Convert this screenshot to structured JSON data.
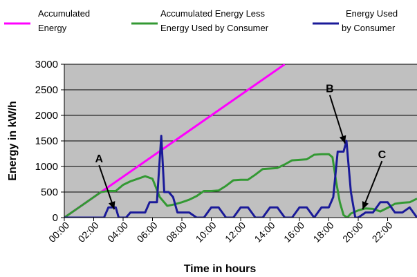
{
  "chart_data": {
    "type": "line",
    "title": "",
    "xlabel": "Time in hours",
    "ylabel": "Energy in kW/h",
    "ylim": [
      0,
      3000
    ],
    "yticks": [
      "0",
      "500",
      "1000",
      "1500",
      "2000",
      "2500",
      "3000"
    ],
    "x_tick_labels": [
      "00:00",
      "02:00",
      "04:00",
      "06:00",
      "08:00",
      "10:00",
      "12:00",
      "14:00",
      "16:00",
      "18:00",
      "20:00",
      "22:00"
    ],
    "x_range_hours": [
      0,
      24
    ],
    "grid": "horizontal",
    "plot_background": "#c0c0c0",
    "legend_position": "top",
    "series": [
      {
        "name": "Accumulated Energy",
        "color": "#ff00ff",
        "x": [
          0,
          15
        ],
        "y": [
          0,
          3000
        ]
      },
      {
        "name": "Accumulated Energy Less Energy Used by Consumer",
        "color": "#339933",
        "x": [
          0,
          1,
          2,
          2.5,
          3,
          3.5,
          4,
          4.5,
          5,
          5.5,
          6,
          6.5,
          7,
          7.5,
          8,
          8.5,
          9,
          9.5,
          10,
          10.5,
          11,
          11.5,
          12,
          12.5,
          13,
          13.5,
          14,
          14.5,
          15,
          15.5,
          16,
          16.5,
          17,
          17.5,
          18,
          18.25,
          18.5,
          18.75,
          19,
          19.25,
          19.5,
          20,
          20.5,
          21,
          21.5,
          22,
          22.5,
          23,
          23.5,
          24
        ],
        "y": [
          0,
          200,
          400,
          500,
          520,
          520,
          640,
          710,
          760,
          810,
          760,
          400,
          230,
          260,
          300,
          350,
          420,
          520,
          520,
          530,
          620,
          730,
          740,
          740,
          840,
          950,
          960,
          970,
          1040,
          1120,
          1130,
          1140,
          1230,
          1240,
          1240,
          1180,
          700,
          300,
          50,
          0,
          80,
          140,
          180,
          170,
          120,
          190,
          270,
          290,
          300,
          370
        ]
      },
      {
        "name": "Energy Used by Consumer",
        "color": "#1a1a99",
        "x": [
          0,
          2.7,
          3,
          3.5,
          3.7,
          4.2,
          4.5,
          5.5,
          5.8,
          6.3,
          6.6,
          6.8,
          7.1,
          7.4,
          7.7,
          8,
          8.5,
          9,
          9.5,
          10,
          10.5,
          11,
          11.5,
          12,
          12.5,
          13,
          13.5,
          14,
          14.5,
          15,
          15.5,
          16,
          16.5,
          17,
          17.5,
          18,
          18.3,
          18.6,
          19,
          19.2,
          19.5,
          19.8,
          20,
          20.5,
          21,
          21.5,
          22,
          22.5,
          23,
          23.5,
          24
        ],
        "y": [
          0,
          0,
          200,
          200,
          0,
          0,
          100,
          100,
          300,
          300,
          1600,
          500,
          500,
          400,
          100,
          100,
          100,
          0,
          0,
          200,
          200,
          0,
          0,
          200,
          200,
          0,
          0,
          200,
          200,
          0,
          0,
          200,
          200,
          0,
          200,
          200,
          400,
          1290,
          1290,
          1500,
          500,
          0,
          0,
          100,
          100,
          300,
          300,
          100,
          100,
          200,
          0
        ]
      }
    ],
    "annotations": [
      {
        "label": "A",
        "at_x": 3.4,
        "at_y": 160
      },
      {
        "label": "B",
        "at_x": 19.1,
        "at_y": 1450
      },
      {
        "label": "C",
        "at_x": 20.3,
        "at_y": 160
      }
    ]
  },
  "legend": [
    {
      "line1": "Accumulated",
      "line2": "Energy",
      "color": "#ff00ff"
    },
    {
      "line1": "Accumulated Energy Less",
      "line2": "Energy Used by Consumer",
      "color": "#339933"
    },
    {
      "line1": "Energy Used",
      "line2": "by Consumer",
      "color": "#1a1a99"
    }
  ]
}
